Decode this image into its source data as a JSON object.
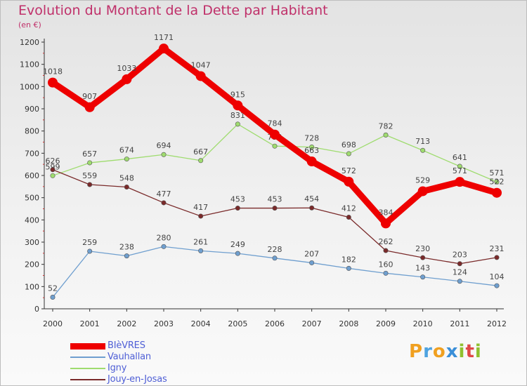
{
  "header": {
    "title": "Evolution du Montant de la Dette par Habitant",
    "unit": "(en €)"
  },
  "brand": {
    "letters": [
      "P",
      "r",
      "o",
      "x",
      "i",
      "t",
      "i"
    ],
    "colors": [
      "#f0a020",
      "#4fa3e0",
      "#f0a020",
      "#3a8fd8",
      "#90c030",
      "#e04848",
      "#90c030"
    ]
  },
  "chart_data": {
    "type": "line",
    "title": "Evolution du Montant de la Dette par Habitant",
    "ylabel": "(en €)",
    "xlabel": "",
    "x": [
      "2000",
      "2001",
      "2002",
      "2003",
      "2004",
      "2005",
      "2006",
      "2007",
      "2008",
      "2009",
      "2010",
      "2011",
      "2012"
    ],
    "ylim": [
      0,
      1200
    ],
    "yticks": [
      0,
      100,
      200,
      300,
      400,
      500,
      600,
      700,
      800,
      900,
      1000,
      1100,
      1200
    ],
    "grid": false,
    "legend_position": "bottom-left",
    "series": [
      {
        "name": "BIèVRES",
        "color": "#ee0000",
        "values": [
          1018,
          907,
          1033,
          1171,
          1047,
          915,
          784,
          663,
          572,
          384,
          529,
          571,
          522
        ]
      },
      {
        "name": "Vauhallan",
        "color": "#6f9fcf",
        "values": [
          52,
          259,
          238,
          280,
          261,
          249,
          228,
          207,
          182,
          160,
          143,
          124,
          104
        ]
      },
      {
        "name": "Igny",
        "color": "#9fdc6f",
        "values": [
          599,
          657,
          674,
          694,
          667,
          831,
          732,
          728,
          698,
          782,
          713,
          641,
          571
        ]
      },
      {
        "name": "Jouy-en-Josas",
        "color": "#7a2a2a",
        "values": [
          626,
          559,
          548,
          477,
          417,
          453,
          453,
          454,
          412,
          262,
          230,
          203,
          231
        ]
      }
    ]
  }
}
